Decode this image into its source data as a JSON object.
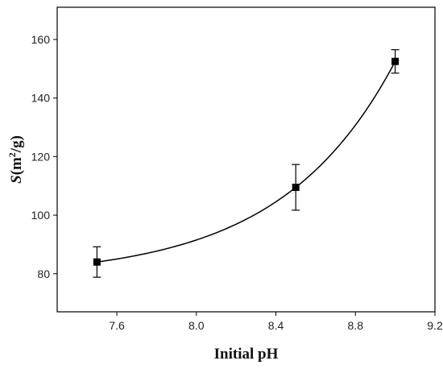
{
  "chart_data": {
    "type": "scatter",
    "title": "",
    "xlabel": "Initial pH",
    "ylabel": {
      "symbol": "S",
      "open": "(m",
      "sup": "2",
      "close": "/g)"
    },
    "xlim": [
      7.3,
      9.2
    ],
    "ylim": [
      67,
      171
    ],
    "x_ticks": [
      7.6,
      8.0,
      8.4,
      8.8,
      9.2
    ],
    "x_tick_labels": [
      "7.6",
      "8.0",
      "8.4",
      "8.8",
      "9.2"
    ],
    "y_ticks": [
      80,
      100,
      120,
      140,
      160
    ],
    "y_tick_labels": [
      "80",
      "100",
      "120",
      "140",
      "160"
    ],
    "grid": false,
    "series": [
      {
        "marker": "square",
        "color": "#000000",
        "points": [
          {
            "x": 7.5,
            "y": 84.0,
            "err": 5.2
          },
          {
            "x": 8.5,
            "y": 109.5,
            "err": 7.8
          },
          {
            "x": 9.0,
            "y": 152.5,
            "err": 4.0
          }
        ]
      }
    ],
    "fit_curve": {
      "type": "smooth",
      "x_range": [
        7.5,
        9.0
      ],
      "color": "#000000"
    }
  }
}
